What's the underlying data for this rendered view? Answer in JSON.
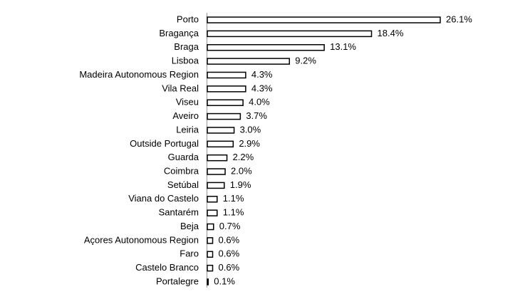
{
  "chart_data": {
    "type": "bar",
    "orientation": "horizontal",
    "categories": [
      "Porto",
      "Bragança",
      "Braga",
      "Lisboa",
      "Madeira Autonomous Region",
      "Vila Real",
      "Viseu",
      "Aveiro",
      "Leiria",
      "Outside Portugal",
      "Guarda",
      "Coimbra",
      "Setúbal",
      "Viana do Castelo",
      "Santarém",
      "Beja",
      "Açores Autonomous Region",
      "Faro",
      "Castelo Branco",
      "Portalegre"
    ],
    "values": [
      26.1,
      18.4,
      13.1,
      9.2,
      4.3,
      4.3,
      4.0,
      3.7,
      3.0,
      2.9,
      2.2,
      2.0,
      1.9,
      1.1,
      1.1,
      0.7,
      0.6,
      0.6,
      0.6,
      0.1
    ],
    "value_labels": [
      "26.1%",
      "18.4%",
      "13.1%",
      "9.2%",
      "4.3%",
      "4.3%",
      "4.0%",
      "3.7%",
      "3.0%",
      "2.9%",
      "2.2%",
      "2.0%",
      "1.9%",
      "1.1%",
      "1.1%",
      "0.7%",
      "0.6%",
      "0.6%",
      "0.6%",
      "0.1%"
    ],
    "color": "#ffffff",
    "edge_color": "#000000"
  }
}
